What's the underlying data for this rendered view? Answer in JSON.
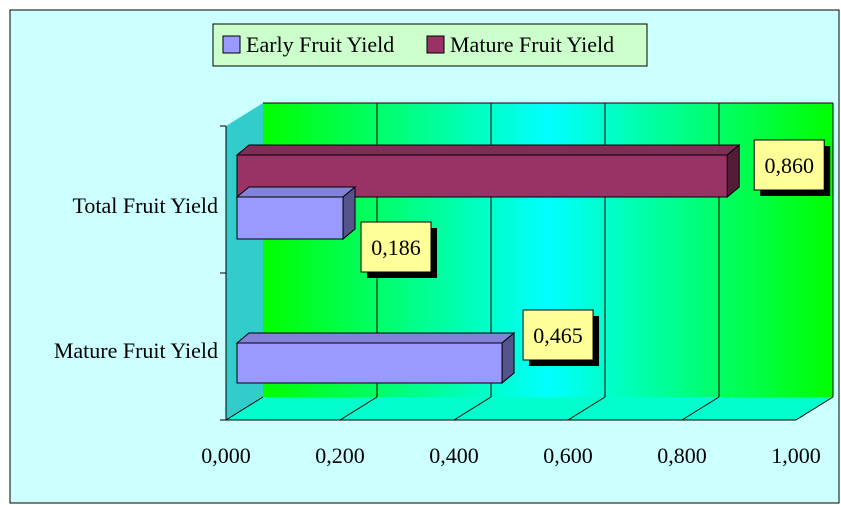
{
  "chart_data": {
    "type": "bar",
    "orientation": "horizontal",
    "three_d": true,
    "categories": [
      "Mature Fruit Yield",
      "Total Fruit Yield"
    ],
    "series": [
      {
        "name": "Early Fruit Yield",
        "values": [
          0.465,
          0.186
        ],
        "data_labels": [
          "0,465",
          "0,186"
        ],
        "color": "#9999ff"
      },
      {
        "name": "Mature Fruit Yield",
        "values": [
          null,
          0.86
        ],
        "data_labels": [
          null,
          "0,860"
        ],
        "color": "#993366"
      }
    ],
    "xlim": [
      0,
      1
    ],
    "x_ticks": [
      0,
      0.2,
      0.4,
      0.6,
      0.8,
      1.0
    ],
    "x_tick_labels": [
      "0,000",
      "0,200",
      "0,400",
      "0,600",
      "0,800",
      "1,000"
    ],
    "legend_position": "top",
    "grid": true,
    "colors": {
      "chart_area": "#ccffff",
      "plot_gradient_edge": "#00ff00",
      "plot_gradient_center": "#00ffff",
      "floor": "#00ffcc",
      "side_wall": "#33cccc",
      "legend_bg": "#ccffcc",
      "label_bg": "#ffff99"
    }
  }
}
